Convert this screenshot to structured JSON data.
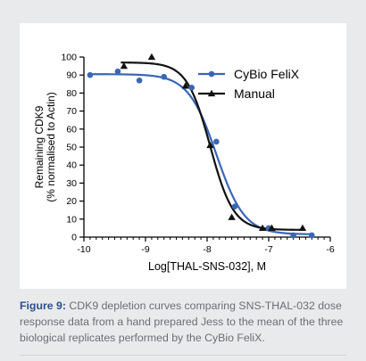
{
  "caption": {
    "label": "Figure 9:",
    "text": " CDK9 depletion curves comparing SNS-THAL-032 dose response data from a hand prepared Jess to the mean of the three biological replicates performed by the CyBio FeliX."
  },
  "chart_data": {
    "type": "scatter",
    "title": "",
    "xlabel": "Log[THAL-SNS-032], M",
    "ylabel_lines": [
      "Remaining CDK9",
      "(% normalised to Actin)"
    ],
    "xlim": [
      -10,
      -6
    ],
    "ylim": [
      0,
      100
    ],
    "x_ticks": [
      -10,
      -9,
      -8,
      -7,
      -6
    ],
    "y_ticks": [
      0,
      10,
      20,
      30,
      40,
      50,
      60,
      70,
      80,
      90,
      100
    ],
    "grid": false,
    "legend_position": "top-right",
    "series": [
      {
        "name": "CyBio FeliX",
        "color": "#3a66b5",
        "marker": "circle",
        "x": [
          -9.9,
          -9.45,
          -9.1,
          -8.7,
          -8.25,
          -7.85,
          -7.55,
          -7.0,
          -6.6,
          -6.3
        ],
        "y": [
          90,
          92,
          87,
          89,
          83,
          53,
          17,
          5,
          1,
          1
        ],
        "fit": {
          "top": 90.5,
          "bottom": 1.5,
          "log_ec50": -7.85,
          "hill": 1.9,
          "x_range": [
            -9.9,
            -6.3
          ]
        }
      },
      {
        "name": "Manual",
        "color": "#111111",
        "marker": "triangle",
        "x": [
          -9.35,
          -8.9,
          -8.35,
          -7.95,
          -7.6,
          -7.1,
          -6.95,
          -6.45
        ],
        "y": [
          95,
          100,
          84,
          51,
          11,
          5,
          5,
          5
        ],
        "fit": {
          "top": 97,
          "bottom": 4,
          "log_ec50": -7.95,
          "hill": 2.3,
          "x_range": [
            -9.4,
            -6.45
          ]
        }
      }
    ]
  }
}
